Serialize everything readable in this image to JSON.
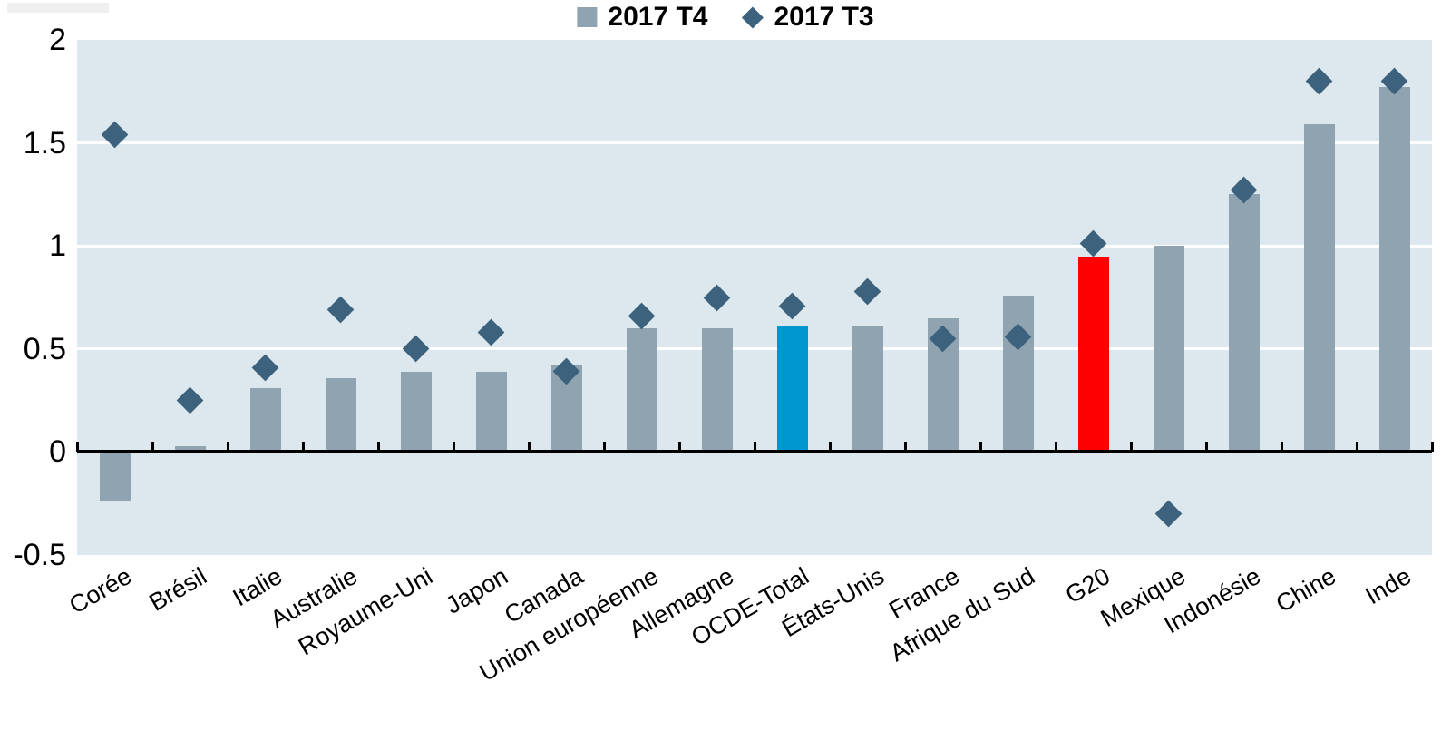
{
  "legend": {
    "items": [
      {
        "label": "2017 T4",
        "marker": "square-icon",
        "color": "#8fa3b1"
      },
      {
        "label": "2017 T3",
        "marker": "diamond-icon",
        "color": "#3c627e"
      }
    ]
  },
  "chart_data": {
    "type": "bar",
    "title": "",
    "xlabel": "",
    "ylabel": "",
    "categories": [
      "Corée",
      "Brésil",
      "Italie",
      "Australie",
      "Royaume-Uni",
      "Japon",
      "Canada",
      "Union européenne",
      "Allemagne",
      "OCDE-Total",
      "États-Unis",
      "France",
      "Afrique du Sud",
      "G20",
      "Mexique",
      "Indonésie",
      "Chine",
      "Inde"
    ],
    "series": [
      {
        "name": "2017 T4",
        "type": "bar",
        "values": [
          -0.24,
          0.03,
          0.31,
          0.36,
          0.39,
          0.39,
          0.42,
          0.6,
          0.6,
          0.61,
          0.61,
          0.65,
          0.76,
          0.95,
          1.0,
          1.25,
          1.59,
          1.77
        ]
      },
      {
        "name": "2017 T3",
        "type": "scatter-diamond",
        "values": [
          1.54,
          0.25,
          0.41,
          0.69,
          0.5,
          0.58,
          0.39,
          0.66,
          0.75,
          0.71,
          0.78,
          0.55,
          0.56,
          1.01,
          -0.3,
          1.27,
          1.8,
          1.8
        ]
      }
    ],
    "ylim": [
      -0.5,
      2
    ],
    "ytick_values": [
      2,
      1.5,
      1,
      0.5,
      0,
      -0.5
    ],
    "ytick_labels": [
      "2",
      "1.5",
      "1",
      "0.5",
      "0",
      "-0.5"
    ],
    "grid": "horizontal-white-lines",
    "legend_position": "top-center",
    "colors": {
      "bar_default": "#8fa3b1",
      "marker": "#3c627e",
      "plot_background": "#dce7ee",
      "gridline": "#ffffff",
      "axis": "#000000",
      "text": "#000000"
    },
    "bar_color_overrides": {
      "OCDE-Total": "#0096d0",
      "G20": "#ff0000"
    }
  }
}
